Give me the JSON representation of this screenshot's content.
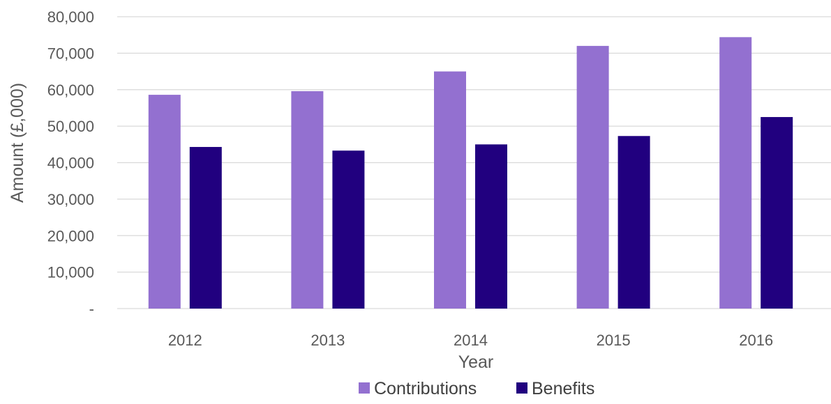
{
  "chart_data": {
    "type": "bar",
    "title": "",
    "xlabel": "Year",
    "ylabel": "Amount (£,000)",
    "categories": [
      "2012",
      "2013",
      "2014",
      "2015",
      "2016"
    ],
    "series": [
      {
        "name": "Contributions",
        "color": "#9370d0",
        "values": [
          58600,
          59600,
          65000,
          72000,
          74400
        ]
      },
      {
        "name": "Benefits",
        "color": "#21007f",
        "values": [
          44300,
          43300,
          45000,
          47300,
          52500
        ]
      }
    ],
    "ylim": [
      0,
      80000
    ],
    "yticks": [
      0,
      10000,
      20000,
      30000,
      40000,
      50000,
      60000,
      70000,
      80000
    ],
    "ytick_labels": [
      "-",
      "10,000",
      "20,000",
      "30,000",
      "40,000",
      "50,000",
      "60,000",
      "70,000",
      "80,000"
    ],
    "grid": true,
    "legend_position": "bottom"
  }
}
